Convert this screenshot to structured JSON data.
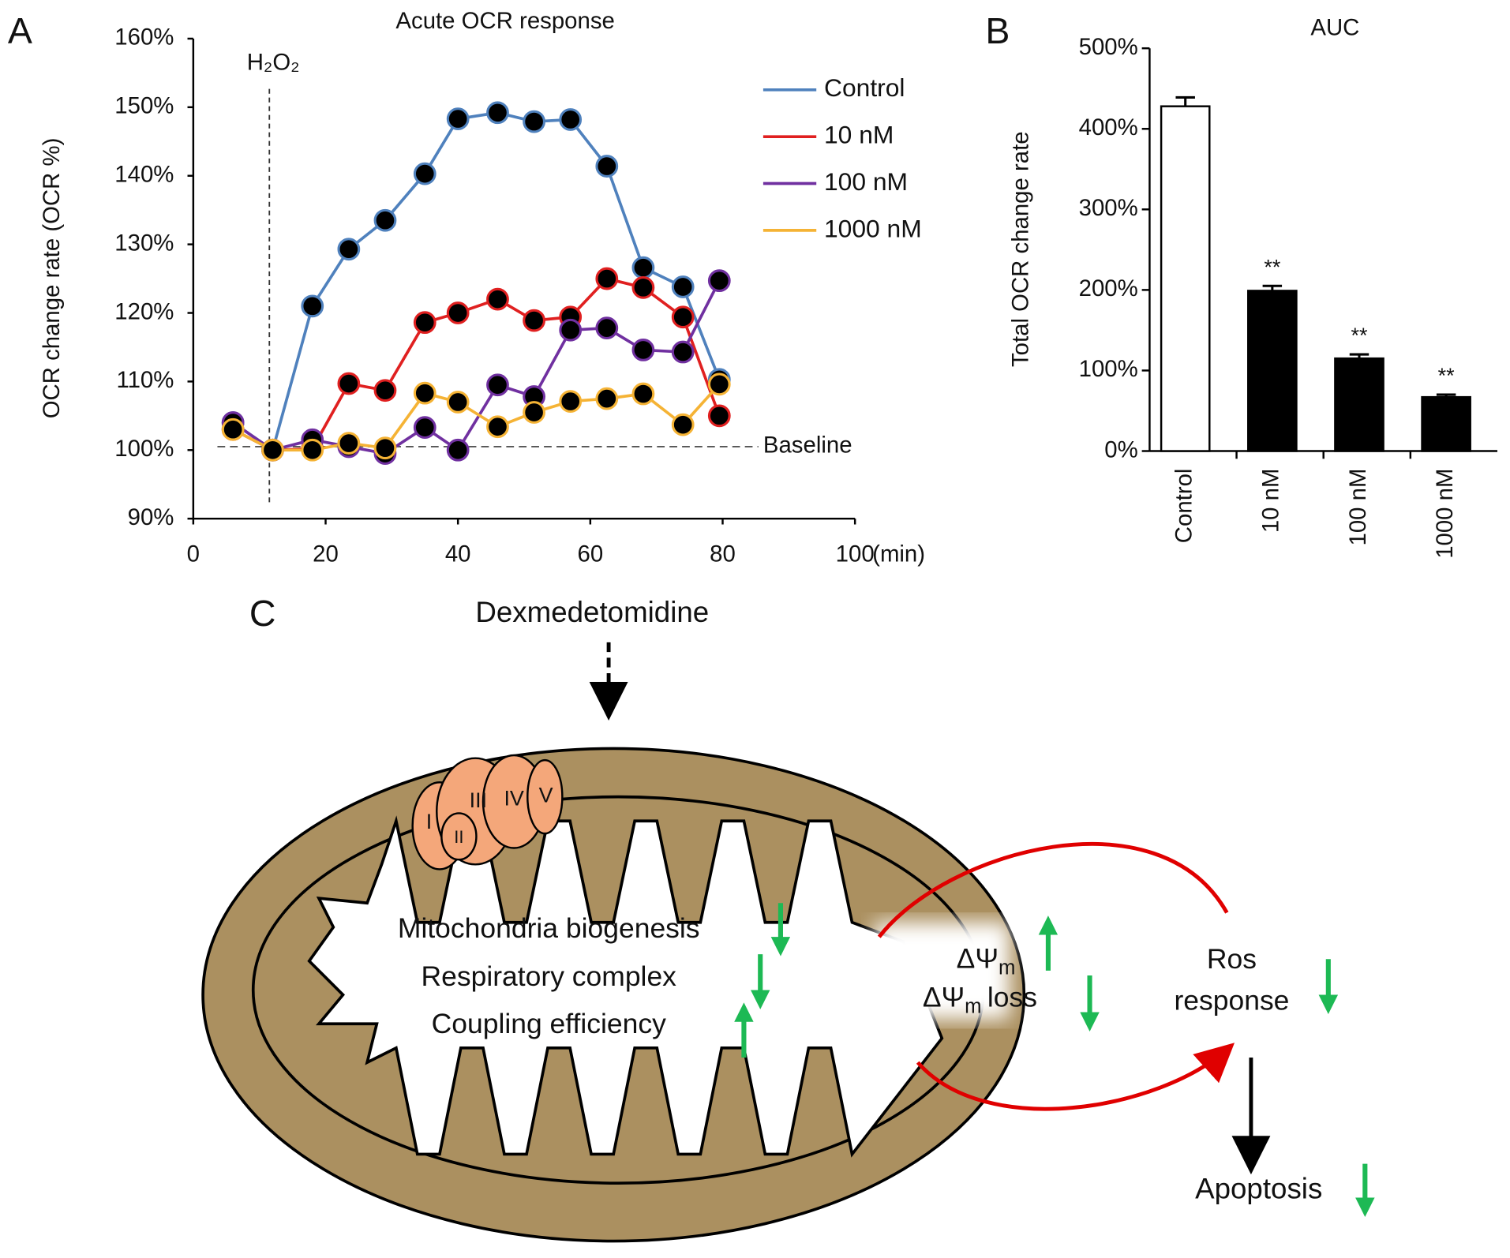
{
  "chart_data": [
    {
      "type": "line",
      "label": "A",
      "title": "Acute OCR response",
      "ylabel": "OCR change rate (OCR %)",
      "xunit": "(min)",
      "x": [
        6,
        12,
        18,
        23.5,
        29,
        35,
        40,
        46,
        51.5,
        57,
        62.5,
        68,
        74,
        79.5
      ],
      "series": [
        {
          "name": "Control",
          "color": "#4f81bd",
          "values": [
            104,
            100,
            121,
            129.3,
            133.5,
            140.3,
            148.3,
            149.2,
            147.9,
            148.2,
            141.4,
            126.6,
            123.8,
            110.3
          ]
        },
        {
          "name": "10 nM",
          "color": "#e02020",
          "values": [
            103,
            100,
            100.2,
            109.7,
            108.7,
            118.6,
            120,
            122,
            118.9,
            119.4,
            125,
            123.7,
            119.4,
            105
          ]
        },
        {
          "name": "100 nM",
          "color": "#7030a0",
          "values": [
            104,
            100,
            101.5,
            100.5,
            99.5,
            103.3,
            100,
            109.5,
            107.8,
            117.5,
            117.8,
            114.6,
            114.3,
            124.7
          ]
        },
        {
          "name": "1000 nM",
          "color": "#f5b335",
          "values": [
            103,
            100,
            100,
            101,
            100.3,
            108.3,
            107,
            103.4,
            105.5,
            107.1,
            107.5,
            108.2,
            103.7,
            109.6
          ]
        }
      ],
      "xlim": [
        0,
        100
      ],
      "xticks": [
        0,
        20,
        40,
        60,
        80,
        100
      ],
      "ylim": [
        90,
        160
      ],
      "yticks": [
        {
          "value": 90,
          "label": "90%"
        },
        {
          "value": 100,
          "label": "100%"
        },
        {
          "value": 110,
          "label": "110%"
        },
        {
          "value": 120,
          "label": "120%"
        },
        {
          "value": 130,
          "label": "130%"
        },
        {
          "value": 140,
          "label": "140%"
        },
        {
          "value": 150,
          "label": "150%"
        },
        {
          "value": 160,
          "label": "160%"
        }
      ],
      "baseline": {
        "value": 100.5,
        "label": "Baseline"
      },
      "event": {
        "value": 11.5,
        "label": "H₂O₂"
      },
      "legend": "upper right"
    },
    {
      "type": "bar",
      "label": "B",
      "title": "AUC",
      "ylabel": "Total OCR change rate",
      "categories": [
        "Control",
        "10 nM",
        "100 nM",
        "1000 nM"
      ],
      "values": [
        428,
        199,
        115,
        67
      ],
      "errors": [
        11,
        6,
        5,
        3
      ],
      "annotations": [
        null,
        "**",
        "**",
        "**"
      ],
      "colors": [
        "#ffffff",
        "#000000",
        "#000000",
        "#000000"
      ],
      "ylim": [
        0,
        500
      ],
      "yticks": [
        {
          "value": 0,
          "label": "0%"
        },
        {
          "value": 100,
          "label": "100%"
        },
        {
          "value": 200,
          "label": "200%"
        },
        {
          "value": 300,
          "label": "300%"
        },
        {
          "value": 400,
          "label": "400%"
        },
        {
          "value": 500,
          "label": "500%"
        }
      ]
    }
  ],
  "diagram": {
    "label": "C",
    "drug": "Dexmedetomidine",
    "complexes": [
      "I",
      "II",
      "III",
      "IV",
      "V"
    ],
    "effects": [
      "Mitochondria biogenesis",
      "Respiratory complex",
      "Coupling efficiency"
    ],
    "potential": {
      "symbol": "ΔΨ",
      "sub": "m",
      "loss": "loss"
    },
    "ros": [
      "Ros",
      "response"
    ],
    "outcome": "Apoptosis"
  }
}
